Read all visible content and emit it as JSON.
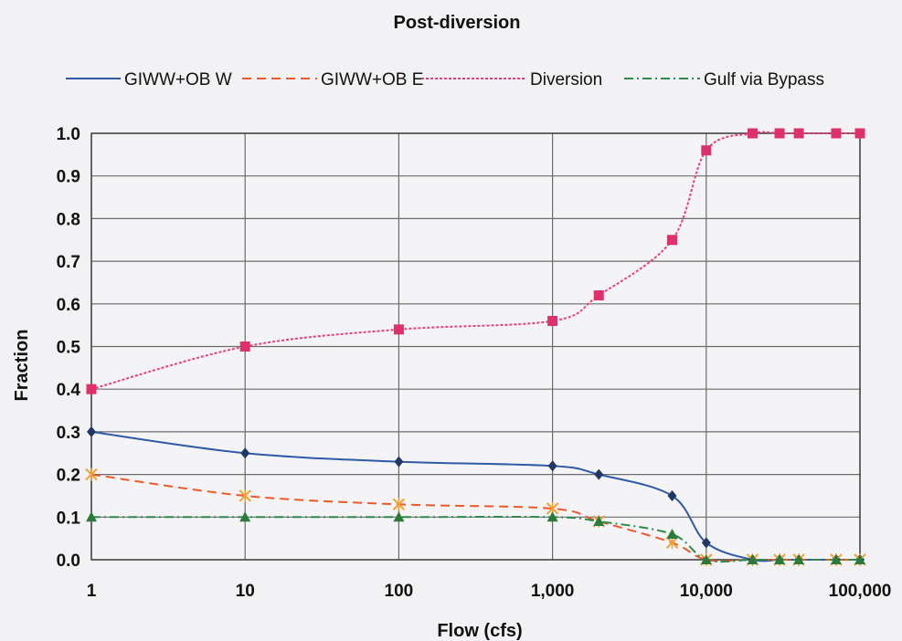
{
  "chart_data": {
    "type": "scatter",
    "title": "Post-diversion",
    "xlabel": "Flow (cfs)",
    "ylabel": "Fraction",
    "x_scale": "log",
    "xlim": [
      1,
      100000
    ],
    "ylim": [
      0.0,
      1.0
    ],
    "grid": true,
    "legend_position": "top",
    "x_ticks": [
      "1",
      "10",
      "100",
      "1,000",
      "10,000",
      "100,000"
    ],
    "y_ticks": [
      "0.0",
      "0.1",
      "0.2",
      "0.3",
      "0.4",
      "0.5",
      "0.6",
      "0.7",
      "0.8",
      "0.9",
      "1.0"
    ],
    "series": [
      {
        "name": "GIWW+OB W",
        "color": "#2e5aa8",
        "line_style": "solid",
        "marker": "diamond",
        "marker_color": "#1f3864",
        "x": [
          1,
          10,
          100,
          1000,
          2000,
          6000,
          10000,
          20000,
          30000,
          40000,
          70000,
          100000
        ],
        "y": [
          0.3,
          0.25,
          0.23,
          0.22,
          0.2,
          0.15,
          0.04,
          0.0,
          0.0,
          0.0,
          0.0,
          0.0
        ]
      },
      {
        "name": "GIWW+OB E",
        "color": "#f0582a",
        "line_style": "dashed",
        "marker": "x",
        "marker_color": "#f0a030",
        "x": [
          1,
          10,
          100,
          1000,
          2000,
          6000,
          10000,
          20000,
          30000,
          40000,
          70000,
          100000
        ],
        "y": [
          0.2,
          0.15,
          0.13,
          0.12,
          0.09,
          0.04,
          0.0,
          0.0,
          0.0,
          0.0,
          0.0,
          0.0
        ]
      },
      {
        "name": "Diversion",
        "color": "#e8407a",
        "line_style": "dotted",
        "marker": "square",
        "marker_color": "#e0306c",
        "x": [
          1,
          10,
          100,
          1000,
          2000,
          6000,
          10000,
          20000,
          30000,
          40000,
          70000,
          100000
        ],
        "y": [
          0.4,
          0.5,
          0.54,
          0.56,
          0.62,
          0.75,
          0.96,
          1.0,
          1.0,
          1.0,
          1.0,
          1.0
        ]
      },
      {
        "name": "Gulf via Bypass",
        "color": "#2e8a4a",
        "line_style": "dashdot",
        "marker": "triangle",
        "marker_color": "#2a7a3a",
        "x": [
          1,
          10,
          100,
          1000,
          2000,
          6000,
          10000,
          20000,
          30000,
          40000,
          70000,
          100000
        ],
        "y": [
          0.1,
          0.1,
          0.1,
          0.1,
          0.09,
          0.06,
          0.0,
          0.0,
          0.0,
          0.0,
          0.0,
          0.0
        ]
      }
    ]
  }
}
